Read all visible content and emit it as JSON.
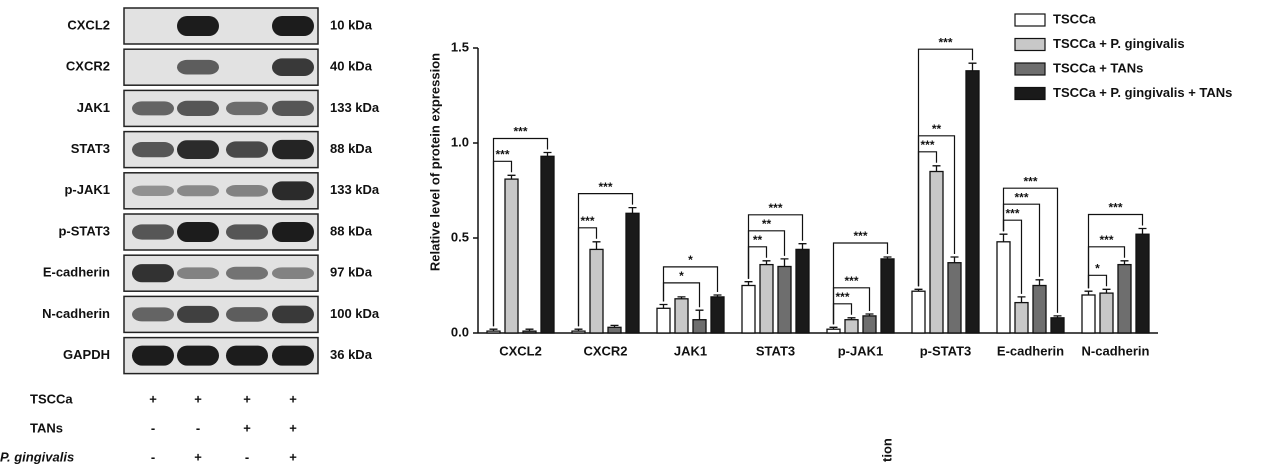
{
  "blot": {
    "rows": [
      {
        "label": "CXCL2",
        "size": "10 kDa"
      },
      {
        "label": "CXCR2",
        "size": "40 kDa"
      },
      {
        "label": "JAK1",
        "size": "133 kDa"
      },
      {
        "label": "STAT3",
        "size": "88 kDa"
      },
      {
        "label": "p-JAK1",
        "size": "133 kDa"
      },
      {
        "label": "p-STAT3",
        "size": "88 kDa"
      },
      {
        "label": "E-cadherin",
        "size": "97 kDa"
      },
      {
        "label": "N-cadherin",
        "size": "100 kDa"
      },
      {
        "label": "GAPDH",
        "size": "36 kDa"
      }
    ],
    "conditions": [
      {
        "label": "TSCCa",
        "signs": [
          "+",
          "+",
          "+",
          "+"
        ]
      },
      {
        "label": "TANs",
        "signs": [
          "-",
          "-",
          "+",
          "+"
        ]
      },
      {
        "label": "P. gingivalis",
        "signs": [
          "-",
          "+",
          "-",
          "+"
        ]
      }
    ]
  },
  "chart_data": {
    "type": "bar",
    "y_label": "Relative level of protein expression",
    "categories": [
      "CXCL2",
      "CXCR2",
      "JAK1",
      "STAT3",
      "p-JAK1",
      "p-STAT3",
      "E-cadherin",
      "N-cadherin"
    ],
    "series": [
      {
        "name": "TSCCa",
        "color": "#ffffff",
        "values": [
          0.01,
          0.01,
          0.13,
          0.25,
          0.02,
          0.22,
          0.48,
          0.2
        ],
        "errors": [
          0.01,
          0.01,
          0.02,
          0.02,
          0.01,
          0.01,
          0.04,
          0.02
        ]
      },
      {
        "name": "TSCCa + P. gingivalis",
        "color": "#c8c8c8",
        "values": [
          0.81,
          0.44,
          0.18,
          0.36,
          0.07,
          0.85,
          0.16,
          0.21
        ],
        "errors": [
          0.02,
          0.04,
          0.01,
          0.02,
          0.01,
          0.03,
          0.03,
          0.02
        ]
      },
      {
        "name": "TSCCa + TANs",
        "color": "#6e6e6e",
        "values": [
          0.01,
          0.03,
          0.07,
          0.35,
          0.09,
          0.37,
          0.25,
          0.36
        ],
        "errors": [
          0.01,
          0.01,
          0.05,
          0.04,
          0.01,
          0.03,
          0.03,
          0.02
        ]
      },
      {
        "name": "TSCCa + P. gingivalis + TANs",
        "color": "#1a1a1a",
        "values": [
          0.93,
          0.63,
          0.19,
          0.44,
          0.39,
          1.38,
          0.08,
          0.52
        ],
        "errors": [
          0.02,
          0.03,
          0.01,
          0.03,
          0.01,
          0.04,
          0.01,
          0.03
        ]
      }
    ],
    "significance": [
      {
        "category": 0,
        "from": 0,
        "to": 1,
        "label": "***"
      },
      {
        "category": 0,
        "from": 0,
        "to": 3,
        "label": "***"
      },
      {
        "category": 1,
        "from": 0,
        "to": 1,
        "label": "***"
      },
      {
        "category": 1,
        "from": 0,
        "to": 3,
        "label": "***"
      },
      {
        "category": 2,
        "from": 0,
        "to": 2,
        "label": "*"
      },
      {
        "category": 2,
        "from": 0,
        "to": 3,
        "label": "*"
      },
      {
        "category": 3,
        "from": 0,
        "to": 1,
        "label": "**"
      },
      {
        "category": 3,
        "from": 0,
        "to": 2,
        "label": "**"
      },
      {
        "category": 3,
        "from": 0,
        "to": 3,
        "label": "***"
      },
      {
        "category": 4,
        "from": 0,
        "to": 1,
        "label": "***"
      },
      {
        "category": 4,
        "from": 0,
        "to": 2,
        "label": "***"
      },
      {
        "category": 4,
        "from": 0,
        "to": 3,
        "label": "***"
      },
      {
        "category": 5,
        "from": 0,
        "to": 1,
        "label": "***"
      },
      {
        "category": 5,
        "from": 0,
        "to": 2,
        "label": "**"
      },
      {
        "category": 5,
        "from": 0,
        "to": 3,
        "label": "***"
      },
      {
        "category": 6,
        "from": 0,
        "to": 1,
        "label": "***"
      },
      {
        "category": 6,
        "from": 0,
        "to": 2,
        "label": "***"
      },
      {
        "category": 6,
        "from": 0,
        "to": 3,
        "label": "***"
      },
      {
        "category": 7,
        "from": 0,
        "to": 1,
        "label": "*"
      },
      {
        "category": 7,
        "from": 0,
        "to": 2,
        "label": "***"
      },
      {
        "category": 7,
        "from": 0,
        "to": 3,
        "label": "***"
      }
    ],
    "ylim": [
      0,
      1.5
    ],
    "yticks": [
      {
        "value": 0,
        "label": "0.0"
      },
      {
        "value": 0.5,
        "label": "0.5"
      },
      {
        "value": 1,
        "label": "1.0"
      },
      {
        "value": 1.5,
        "label": "1.5"
      }
    ],
    "legend": "top-right"
  },
  "clipped_text": "tion"
}
